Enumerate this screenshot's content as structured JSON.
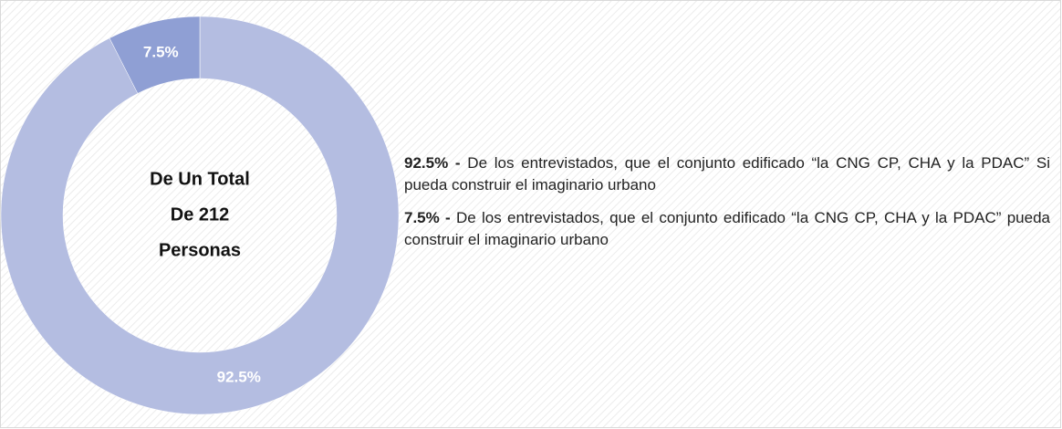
{
  "chart_data": {
    "type": "pie",
    "values": [
      92.5,
      7.5
    ],
    "value_labels": [
      "92.5%",
      "7.5%"
    ],
    "colors": [
      "#b4bde1",
      "#8f9fd4"
    ],
    "center_text": [
      "De Un Total",
      "De 212",
      "Personas"
    ],
    "annotations": [
      {
        "bold": "92.5% -",
        "text": " De los entrevistados, que el conjunto edificado “la CNG CP, CHA y la PDAC” Si pueda construir el imaginario urbano"
      },
      {
        "bold": "7.5% -",
        "text": " De los entrevistados, que el conjunto edificado “la CNG CP, CHA y la PDAC” pueda construir el imaginario urbano"
      }
    ]
  }
}
